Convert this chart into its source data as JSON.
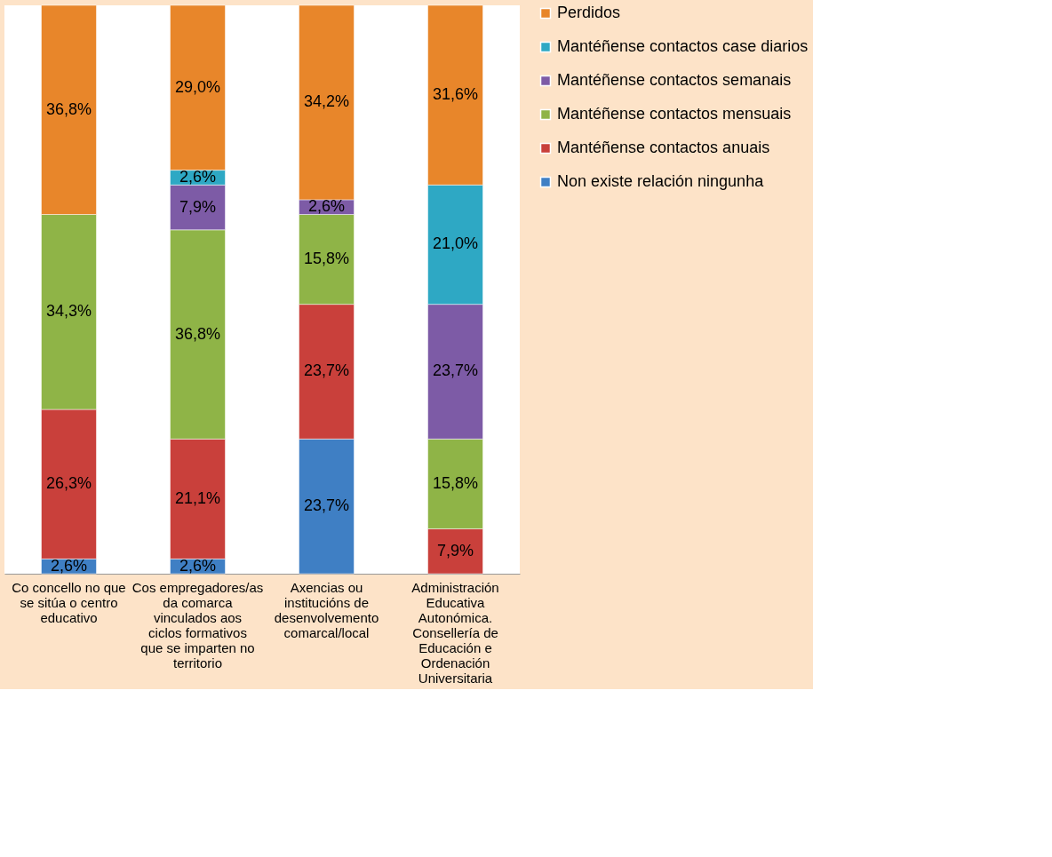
{
  "chart_data": {
    "type": "bar",
    "stacked": true,
    "legend": "right",
    "tick_labels": "x",
    "categories": [
      "Co concello no que se sitúa o centro educativo",
      "Cos empregadores/as da comarca vinculados aos ciclos formativos que se imparten no territorio",
      "Axencias ou institucións de desenvolvemento comarcal/local",
      "Administración Educativa Autonómica. Consellería de Educación e Ordenación Universitaria"
    ],
    "series": [
      {
        "name": "Non existe relación ningunha",
        "color": "#3f7fc4",
        "values": [
          2.6,
          2.6,
          23.7,
          null
        ],
        "value_labels": [
          "2,6%",
          "2,6%",
          "23,7%",
          null
        ]
      },
      {
        "name": "Mantéñense contactos anuais",
        "color": "#c9403b",
        "values": [
          26.3,
          21.1,
          23.7,
          7.9
        ],
        "value_labels": [
          "26,3%",
          "21,1%",
          "23,7%",
          "7,9%"
        ]
      },
      {
        "name": "Mantéñense contactos mensuais",
        "color": "#8fb447",
        "values": [
          34.3,
          36.8,
          15.8,
          15.8
        ],
        "value_labels": [
          "34,3%",
          "36,8%",
          "15,8%",
          "15,8%"
        ]
      },
      {
        "name": "Mantéñense contactos semanais",
        "color": "#7d5ba6",
        "values": [
          null,
          7.9,
          2.6,
          23.7
        ],
        "value_labels": [
          null,
          "7,9%",
          "2,6%",
          "23,7%"
        ]
      },
      {
        "name": "Mantéñense contactos case diarios",
        "color": "#2ea8c4",
        "values": [
          null,
          2.6,
          null,
          21.0
        ],
        "value_labels": [
          null,
          "2,6%",
          null,
          "21,0%"
        ]
      },
      {
        "name": "Perdidos",
        "color": "#e8862a",
        "values": [
          36.8,
          29.0,
          34.2,
          31.6
        ],
        "value_labels": [
          "36,8%",
          "29,0%",
          "34,2%",
          "31,6%"
        ]
      }
    ]
  }
}
